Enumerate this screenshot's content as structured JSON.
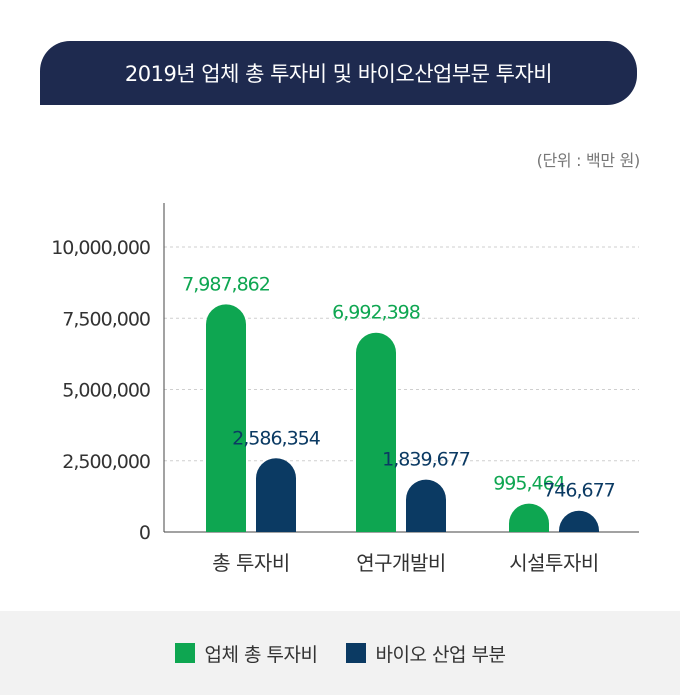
{
  "chart_data": {
    "type": "bar",
    "title": "2019년 업체 총 투자비 및 바이오산업부문 투자비",
    "unit_note": "(단위 : 백만 원)",
    "categories": [
      "총 투자비",
      "연구개발비",
      "시설투자비"
    ],
    "series": [
      {
        "name": "업체 총 투자비",
        "values": [
          7987862,
          6992398,
          995464
        ],
        "labels": [
          "7,987,862",
          "6,992,398",
          "995,464"
        ],
        "color": "#0ea651",
        "label_color": "#0ea651"
      },
      {
        "name": "바이오 산업 부분",
        "values": [
          2586354,
          1839677,
          746677
        ],
        "labels": [
          "2,586,354",
          "1,839,677",
          "746,677"
        ],
        "color": "#0b3a63",
        "label_color": "#0b3a63"
      }
    ],
    "ylim": [
      0,
      10000000
    ],
    "yticks": [
      0,
      2500000,
      5000000,
      7500000,
      10000000
    ],
    "ytick_labels": [
      "0",
      "2,500,000",
      "5,000,000",
      "7,500,000",
      "10,000,000"
    ],
    "grid": true,
    "legend_position": "bottom"
  }
}
